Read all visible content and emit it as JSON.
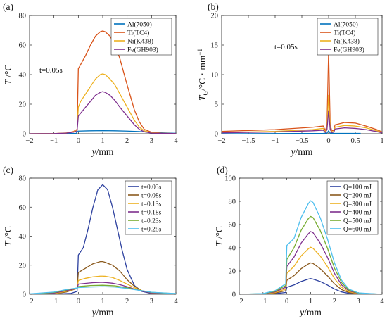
{
  "colors": {
    "blue": "#0072bd",
    "orange": "#d95319",
    "yellow": "#edb120",
    "purple": "#7e2f8e",
    "green": "#77ac30",
    "cyan": "#4dbeee",
    "navy": "#2b3f9e",
    "brown": "#8b5a1e"
  },
  "chart_data": [
    {
      "panel": "(a)",
      "type": "line",
      "xlabel": "y/mm",
      "ylabel": "T /°C",
      "xlim": [
        -2,
        4
      ],
      "ylim": [
        0,
        80
      ],
      "xticks": [
        -2,
        -1,
        0,
        1,
        2,
        3,
        4
      ],
      "yticks": [
        0,
        20,
        40,
        60,
        80
      ],
      "annotation": "t=0.05s",
      "legend": "top-right",
      "series": [
        {
          "name": "Al(7050)",
          "color": "blue",
          "x": [
            -2,
            -1,
            -0.1,
            0,
            0.5,
            1,
            1.5,
            2,
            2.5,
            3,
            4
          ],
          "y": [
            0,
            0,
            0.2,
            1.8,
            2,
            2.1,
            2,
            1.8,
            1.5,
            0.9,
            0.3
          ]
        },
        {
          "name": "Ti(TC4)",
          "color": "orange",
          "x": [
            -2,
            -1,
            -0.5,
            -0.2,
            -0.05,
            0,
            0.1,
            0.3,
            0.5,
            0.7,
            0.9,
            1,
            1.1,
            1.3,
            1.5,
            1.7,
            2,
            2.3,
            2.5,
            2.7,
            3,
            3.5,
            4
          ],
          "y": [
            0,
            0.1,
            0.5,
            1.5,
            3,
            44,
            47,
            53,
            60,
            66,
            69,
            69.5,
            69,
            66,
            60,
            51,
            33,
            16,
            8,
            3,
            1,
            0.3,
            0.1
          ]
        },
        {
          "name": "Ni(K438)",
          "color": "yellow",
          "x": [
            -2,
            -1,
            -0.5,
            -0.2,
            -0.05,
            0,
            0.1,
            0.3,
            0.5,
            0.7,
            0.9,
            1,
            1.1,
            1.3,
            1.5,
            1.7,
            2,
            2.3,
            2.5,
            2.7,
            3,
            4
          ],
          "y": [
            0,
            0.1,
            0.4,
            1.2,
            2.5,
            18,
            22,
            27,
            32,
            37,
            40,
            40.5,
            40,
            37,
            33,
            27,
            18,
            9,
            4.5,
            2,
            0.6,
            0.1
          ]
        },
        {
          "name": "Fe(GH903)",
          "color": "purple",
          "x": [
            -2,
            -1,
            -0.5,
            -0.2,
            -0.05,
            0,
            0.1,
            0.3,
            0.5,
            0.7,
            0.9,
            1,
            1.1,
            1.3,
            1.5,
            1.7,
            2,
            2.3,
            2.5,
            2.7,
            3,
            4
          ],
          "y": [
            0,
            0.1,
            0.4,
            1,
            2,
            12,
            14,
            18,
            22,
            26,
            28,
            28.5,
            28,
            26,
            22.5,
            18,
            12,
            6,
            3,
            1.3,
            0.4,
            0.1
          ]
        }
      ]
    },
    {
      "panel": "(b)",
      "type": "line",
      "xlabel": "y/mm",
      "ylabel": "T_G/°C · mm^-1",
      "xlim": [
        -2,
        1
      ],
      "ylim": [
        0,
        20
      ],
      "xticks": [
        -2,
        -1.5,
        -1,
        -0.5,
        0,
        0.5,
        1
      ],
      "yticks": [
        0,
        5,
        10,
        15,
        20
      ],
      "annotation": "t=0.05s",
      "legend": "top-right",
      "series": [
        {
          "name": "Al(7050)",
          "color": "blue",
          "x": [
            -2,
            -0.1,
            -0.03,
            0,
            0.03,
            0.1,
            0.6
          ],
          "y": [
            0,
            0.05,
            0.1,
            0.5,
            0.1,
            0.05,
            0.05
          ]
        },
        {
          "name": "Ti(TC4)",
          "color": "orange",
          "x": [
            -2,
            -1,
            -0.3,
            -0.1,
            -0.06,
            -0.03,
            0,
            0.03,
            0.06,
            0.1,
            0.12,
            0.3,
            0.5,
            0.7,
            0.9,
            1
          ],
          "y": [
            0.4,
            0.7,
            1.1,
            1.3,
            0.5,
            1.5,
            14,
            1.5,
            0.5,
            0.6,
            1.5,
            1.9,
            1.8,
            1.3,
            0.7,
            0.3
          ]
        },
        {
          "name": "Ni(K438)",
          "color": "yellow",
          "x": [
            -2,
            -1,
            -0.3,
            -0.1,
            -0.06,
            -0.03,
            0,
            0.03,
            0.06,
            0.1,
            0.12,
            0.3,
            0.5,
            0.7,
            0.9,
            1
          ],
          "y": [
            0.2,
            0.4,
            0.7,
            0.9,
            0.3,
            1,
            6.5,
            1,
            0.3,
            0.4,
            1.1,
            1.4,
            1.3,
            1,
            0.5,
            0.2
          ]
        },
        {
          "name": "Fe(GH903)",
          "color": "purple",
          "x": [
            -2,
            -1,
            -0.3,
            -0.1,
            -0.06,
            -0.03,
            0,
            0.03,
            0.06,
            0.1,
            0.12,
            0.3,
            0.5,
            0.7,
            0.9,
            1
          ],
          "y": [
            0.15,
            0.3,
            0.5,
            0.6,
            0.2,
            0.7,
            3.9,
            0.7,
            0.2,
            0.3,
            0.8,
            1,
            0.9,
            0.7,
            0.35,
            0.15
          ]
        }
      ]
    },
    {
      "panel": "(c)",
      "type": "line",
      "xlabel": "y/mm",
      "ylabel": "T /°C",
      "xlim": [
        -2,
        4
      ],
      "ylim": [
        0,
        80
      ],
      "xticks": [
        -2,
        -1,
        0,
        1,
        2,
        3,
        4
      ],
      "yticks": [
        0,
        20,
        40,
        60,
        80
      ],
      "legend": "top-right",
      "series": [
        {
          "name": "t=0.03s",
          "color": "navy",
          "x": [
            -2,
            -1,
            -0.3,
            -0.05,
            0,
            0.2,
            0.4,
            0.6,
            0.8,
            1,
            1.2,
            1.4,
            1.6,
            1.8,
            2,
            2.3,
            2.6,
            3,
            4
          ],
          "y": [
            0,
            0.1,
            0.6,
            2,
            27,
            32,
            45,
            60,
            72,
            75.5,
            72,
            60,
            45,
            30,
            17,
            6,
            2,
            0.5,
            0.1
          ]
        },
        {
          "name": "t=0.08s",
          "color": "brown",
          "x": [
            -2,
            -1,
            -0.5,
            -0.05,
            0,
            0.3,
            0.6,
            0.9,
            1,
            1.1,
            1.4,
            1.7,
            2,
            2.3,
            2.6,
            3,
            4
          ],
          "y": [
            0,
            0.3,
            1.5,
            4,
            15,
            18,
            21,
            22.5,
            22.5,
            22,
            20,
            16,
            10,
            5.5,
            2.5,
            0.8,
            0.1
          ]
        },
        {
          "name": "t=0.13s",
          "color": "yellow",
          "x": [
            -2,
            -1,
            -0.5,
            -0.05,
            0,
            0.3,
            0.6,
            0.9,
            1,
            1.1,
            1.4,
            1.7,
            2,
            2.3,
            2.6,
            3,
            4
          ],
          "y": [
            0,
            0.5,
            2,
            4,
            9.5,
            11,
            12,
            12.5,
            12.5,
            12.4,
            11.5,
            9.5,
            7,
            4.5,
            2.5,
            1,
            0.2
          ]
        },
        {
          "name": "t=0.18s",
          "color": "purple",
          "x": [
            -2,
            -1,
            -0.5,
            -0.05,
            0,
            0.3,
            0.6,
            0.9,
            1,
            1.1,
            1.4,
            1.7,
            2,
            2.3,
            2.6,
            3,
            4
          ],
          "y": [
            0.1,
            0.8,
            2.5,
            4,
            7,
            7.5,
            8,
            8.2,
            8.2,
            8.1,
            7.6,
            6.6,
            5.2,
            3.6,
            2.3,
            1,
            0.3
          ]
        },
        {
          "name": "t=0.23s",
          "color": "green",
          "x": [
            -2,
            -1,
            -0.5,
            -0.05,
            0,
            0.5,
            1,
            1.5,
            2,
            2.5,
            3,
            4
          ],
          "y": [
            0.2,
            1.2,
            3,
            4.3,
            5.3,
            6,
            6.2,
            5.8,
            4.5,
            2.8,
            1.3,
            0.4
          ]
        },
        {
          "name": "t=0.28s",
          "color": "cyan",
          "x": [
            -2,
            -1,
            -0.5,
            -0.05,
            0,
            0.5,
            1,
            1.5,
            2,
            2.5,
            3,
            4
          ],
          "y": [
            0.3,
            1.5,
            3.2,
            4.3,
            4.6,
            5,
            5.2,
            5,
            4,
            2.7,
            1.4,
            0.5
          ]
        }
      ]
    },
    {
      "panel": "(d)",
      "type": "line",
      "xlabel": "y/mm",
      "ylabel": "T /°C",
      "xlim": [
        -2,
        4
      ],
      "ylim": [
        0,
        100
      ],
      "xticks": [
        -2,
        -1,
        0,
        1,
        2,
        3,
        4
      ],
      "yticks": [
        0,
        20,
        40,
        60,
        80,
        100
      ],
      "legend": "top-right",
      "series": [
        {
          "name": "Q=100 mJ",
          "color": "navy",
          "x": [
            -2,
            -1,
            -0.5,
            -0.05,
            0,
            0.3,
            0.6,
            0.9,
            1,
            1.1,
            1.4,
            1.7,
            2,
            2.3,
            2.6,
            3,
            4
          ],
          "y": [
            0,
            0.1,
            0.5,
            1.5,
            6,
            8,
            11,
            13,
            13.5,
            13,
            11,
            8,
            4.5,
            2,
            0.8,
            0.2,
            0
          ]
        },
        {
          "name": "Q=200 mJ",
          "color": "brown",
          "x": [
            -2,
            -1,
            -0.5,
            -0.05,
            0,
            0.3,
            0.6,
            0.9,
            1,
            1.1,
            1.4,
            1.7,
            2,
            2.3,
            2.6,
            3,
            4
          ],
          "y": [
            0,
            0.2,
            1,
            3,
            12,
            16,
            22,
            26,
            27,
            26.5,
            22,
            16,
            9,
            4,
            1.5,
            0.4,
            0
          ]
        },
        {
          "name": "Q=300 mJ",
          "color": "yellow",
          "x": [
            -2,
            -1,
            -0.5,
            -0.05,
            0,
            0.3,
            0.6,
            0.9,
            1,
            1.1,
            1.4,
            1.7,
            2,
            2.3,
            2.6,
            3,
            4
          ],
          "y": [
            0,
            0.3,
            1.5,
            4.5,
            18,
            24,
            33,
            39,
            40.5,
            39.5,
            33,
            24,
            13.5,
            6,
            2.2,
            0.6,
            0
          ]
        },
        {
          "name": "Q=400 mJ",
          "color": "purple",
          "x": [
            -2,
            -1,
            -0.5,
            -0.05,
            0,
            0.3,
            0.6,
            0.9,
            1,
            1.1,
            1.4,
            1.7,
            2,
            2.3,
            2.6,
            3,
            4
          ],
          "y": [
            0,
            0.4,
            2,
            6,
            24,
            32,
            44,
            52,
            54,
            53,
            44,
            32,
            18,
            8,
            3,
            0.8,
            0
          ]
        },
        {
          "name": "Q=500 mJ",
          "color": "green",
          "x": [
            -2,
            -1,
            -0.5,
            -0.05,
            0,
            0.3,
            0.6,
            0.9,
            1,
            1.1,
            1.4,
            1.7,
            2,
            2.3,
            2.6,
            3,
            4
          ],
          "y": [
            0,
            0.5,
            2.5,
            7.5,
            30,
            40,
            55,
            65,
            67,
            66,
            55,
            40,
            22.5,
            10,
            3.7,
            1,
            0
          ]
        },
        {
          "name": "Q=600 mJ",
          "color": "cyan",
          "x": [
            -2,
            -1,
            -0.5,
            -0.05,
            0,
            0.3,
            0.6,
            0.9,
            1,
            1.1,
            1.4,
            1.7,
            2,
            2.3,
            2.6,
            3,
            4
          ],
          "y": [
            0,
            0.6,
            3,
            9,
            42,
            48,
            66,
            78,
            80.5,
            79,
            66,
            48,
            27,
            12,
            4.5,
            1.2,
            0
          ]
        }
      ]
    }
  ]
}
